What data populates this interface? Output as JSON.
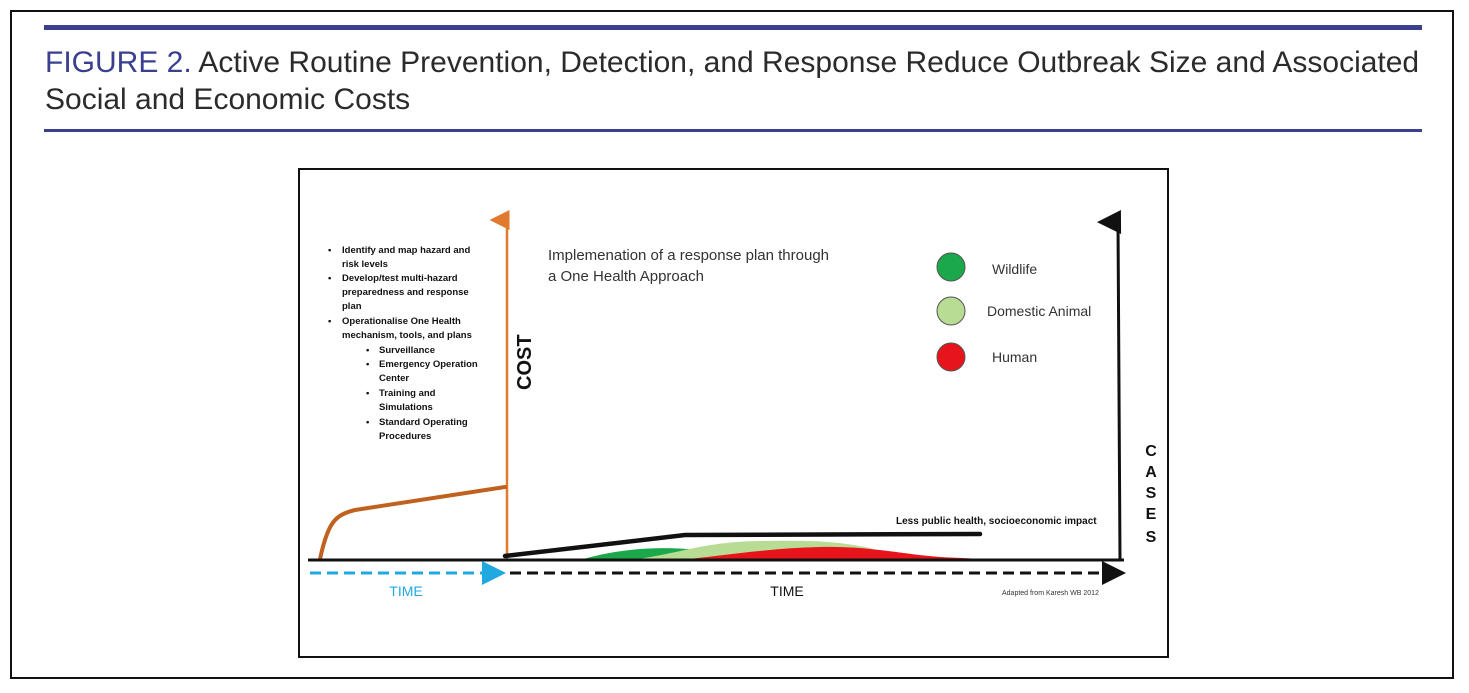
{
  "figure": {
    "label": "FIGURE 2.",
    "title_line1": "Active Routine Prevention, Detection, and Response Reduce Outbreak Size and Associated",
    "title_line2": "Social and Economic Costs"
  },
  "diagram": {
    "cost_axis_label": "COST",
    "cases_axis_letters": [
      "C",
      "A",
      "S",
      "E",
      "S"
    ],
    "time_left_label": "TIME",
    "time_right_label": "TIME",
    "response_text_line1": "Implemenation of a response plan through",
    "response_text_line2": "a One Health Approach",
    "impact_label": "Less public health, socioeconomic impact",
    "source_note": "Adapted from Karesh WB 2012",
    "bullets": {
      "item1_line1": "Identify and map hazard and",
      "item1_line2": "risk levels",
      "item2_line1": "Develop/test multi-hazard",
      "item2_line2": "preparedness and response",
      "item2_line3": "plan",
      "item3_line1": "Operationalise One Health",
      "item3_line2": "mechanism, tools, and plans",
      "sub1": "Surveillance",
      "sub2_line1": "Emergency Operation",
      "sub2_line2": "Center",
      "sub3_line1": "Training and",
      "sub3_line2": "Simulations",
      "sub4_line1": "Standard Operating",
      "sub4_line2": "Procedures"
    },
    "legend": [
      {
        "label": "Wildlife",
        "color": "#1aa84a"
      },
      {
        "label": "Domestic Animal",
        "color": "#b8dc93"
      },
      {
        "label": "Human",
        "color": "#e8141c"
      }
    ],
    "colors": {
      "cost_axis": "#e07a2e",
      "cost_curve": "#c0611f",
      "time_left": "#1fa9e0",
      "baseline": "#111111",
      "title_accent": "#3a3f8f"
    }
  }
}
